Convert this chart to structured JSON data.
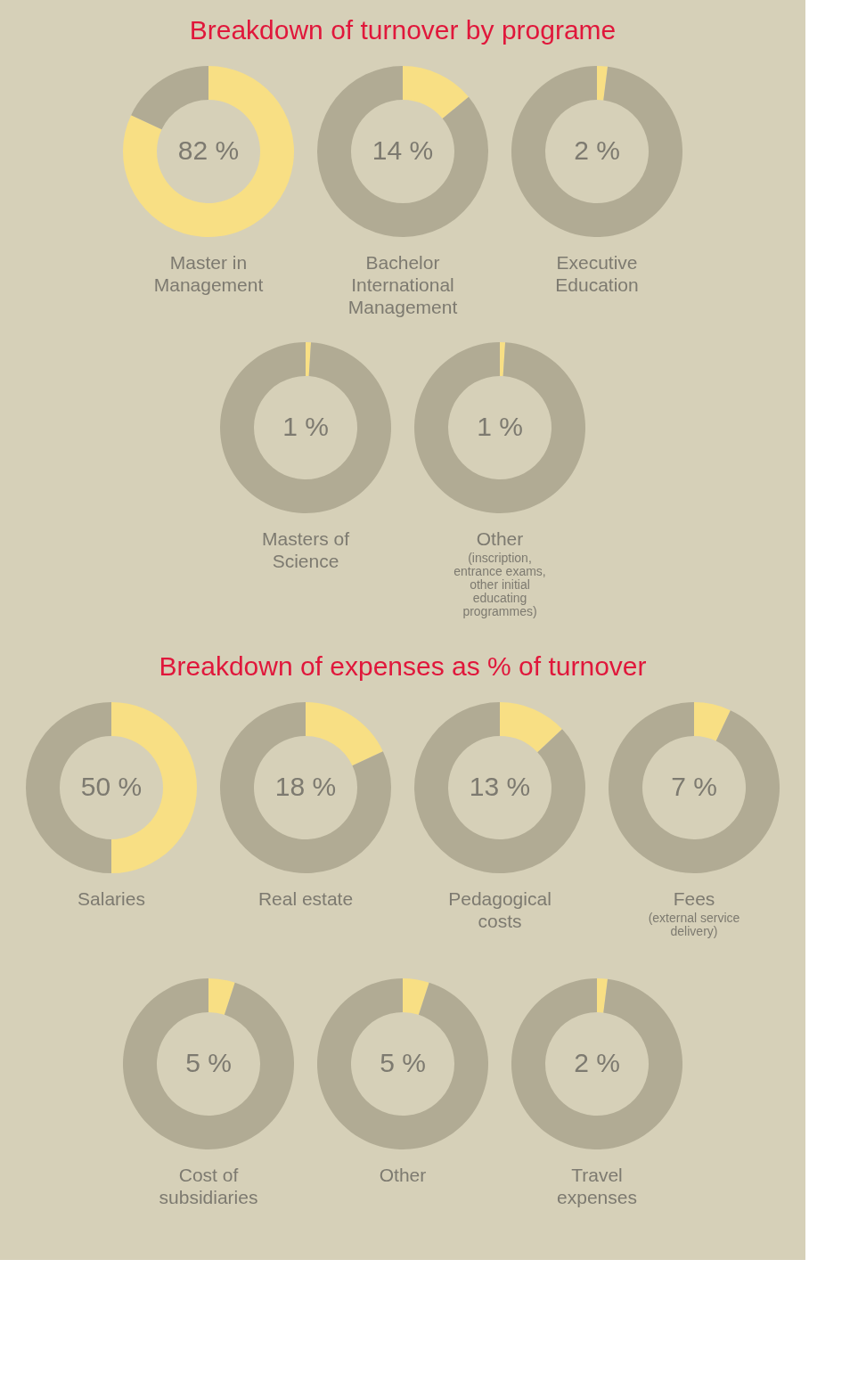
{
  "chart_data": [
    {
      "type": "donut",
      "title": "Breakdown of turnover by programe",
      "xlabel": "Master in\nManagement",
      "categories": [
        null,
        null
      ],
      "values": [
        82,
        18
      ],
      "colors": [
        "#f8df84",
        "#b1ab94"
      ],
      "value_labels": [
        "82 %",
        null
      ]
    },
    {
      "type": "donut",
      "xlabel": "Bachelor\nInternational\nManagement",
      "categories": [
        null,
        null
      ],
      "values": [
        14,
        86
      ],
      "colors": [
        "#f8df84",
        "#b1ab94"
      ],
      "value_labels": [
        "14 %",
        null
      ]
    },
    {
      "type": "donut",
      "xlabel": "Executive\nEducation",
      "categories": [
        null,
        null
      ],
      "values": [
        2,
        98
      ],
      "colors": [
        "#f8df84",
        "#b1ab94"
      ],
      "value_labels": [
        "2 %",
        null
      ]
    },
    {
      "type": "donut",
      "xlabel": "Masters of\nScience",
      "categories": [
        null,
        null
      ],
      "values": [
        1,
        99
      ],
      "colors": [
        "#f8df84",
        "#b1ab94"
      ],
      "value_labels": [
        "1 %",
        null
      ]
    },
    {
      "type": "donut",
      "xlabel": "Other",
      "categories": [
        null,
        null
      ],
      "values": [
        1,
        99
      ],
      "colors": [
        "#f8df84",
        "#b1ab94"
      ],
      "value_labels": [
        "1 %",
        null
      ],
      "annotations": [
        "(inscription,\nentrance exams,\nother initial\neducating\nprogrammes)"
      ]
    },
    {
      "type": "donut",
      "title": "Breakdown of expenses as % of turnover",
      "xlabel": "Salaries",
      "categories": [
        null,
        null
      ],
      "values": [
        50,
        50
      ],
      "colors": [
        "#f8df84",
        "#b1ab94"
      ],
      "value_labels": [
        "50 %",
        null
      ]
    },
    {
      "type": "donut",
      "xlabel": "Real estate",
      "categories": [
        null,
        null
      ],
      "values": [
        18,
        82
      ],
      "colors": [
        "#f8df84",
        "#b1ab94"
      ],
      "value_labels": [
        "18 %",
        null
      ]
    },
    {
      "type": "donut",
      "xlabel": "Pedagogical\ncosts",
      "categories": [
        null,
        null
      ],
      "values": [
        13,
        87
      ],
      "colors": [
        "#f8df84",
        "#b1ab94"
      ],
      "value_labels": [
        "13 %",
        null
      ]
    },
    {
      "type": "donut",
      "xlabel": "Fees",
      "categories": [
        null,
        null
      ],
      "values": [
        7,
        93
      ],
      "colors": [
        "#f8df84",
        "#b1ab94"
      ],
      "value_labels": [
        "7 %",
        null
      ],
      "annotations": [
        "(external service\ndelivery)"
      ]
    },
    {
      "type": "donut",
      "xlabel": "Cost of\nsubsidiaries",
      "categories": [
        null,
        null
      ],
      "values": [
        5,
        95
      ],
      "colors": [
        "#f8df84",
        "#b1ab94"
      ],
      "value_labels": [
        "5 %",
        null
      ]
    },
    {
      "type": "donut",
      "xlabel": "Other",
      "categories": [
        null,
        null
      ],
      "values": [
        5,
        95
      ],
      "colors": [
        "#f8df84",
        "#b1ab94"
      ],
      "value_labels": [
        "5 %",
        null
      ]
    },
    {
      "type": "donut",
      "xlabel": "Travel\nexpenses",
      "categories": [
        null,
        null
      ],
      "values": [
        2,
        98
      ],
      "colors": [
        "#f8df84",
        "#b1ab94"
      ],
      "value_labels": [
        "2 %",
        null
      ]
    }
  ]
}
